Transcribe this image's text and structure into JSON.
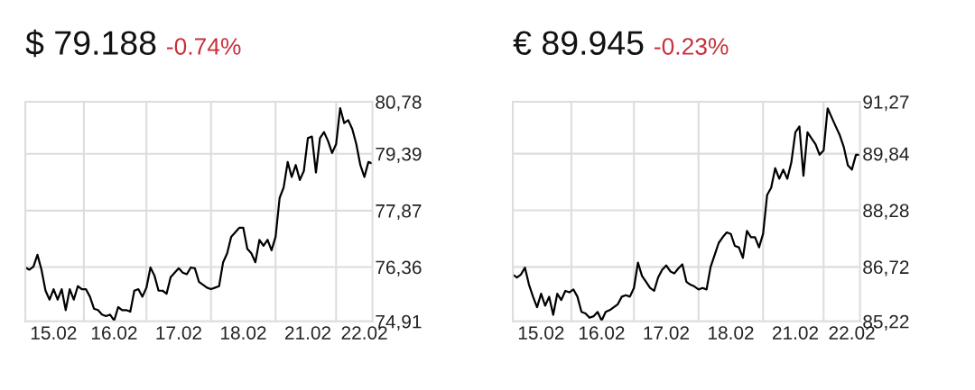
{
  "chart_data": [
    {
      "type": "line",
      "title": "$ 79.188",
      "subtitle": "-0.74%",
      "categories": [
        null,
        null,
        null,
        null,
        null,
        null,
        null,
        "15.02",
        null,
        null,
        null,
        null,
        null,
        null,
        null,
        null,
        null,
        null,
        null,
        null,
        null,
        null,
        "16.02",
        null,
        null,
        null,
        null,
        null,
        null,
        null,
        null,
        null,
        null,
        null,
        null,
        null,
        null,
        null,
        "17.02",
        null,
        null,
        null,
        null,
        null,
        null,
        null,
        null,
        null,
        null,
        null,
        null,
        null,
        null,
        null,
        "18.02",
        null,
        null,
        null,
        null,
        null,
        null,
        null,
        null,
        null,
        null,
        null,
        null,
        null,
        null,
        null,
        "21.02",
        null,
        null,
        null,
        null,
        null,
        null,
        null,
        null,
        null,
        null,
        null,
        null,
        null,
        "22.02",
        null,
        null
      ],
      "series": [
        {
          "color": "#000000",
          "values": [
            76.35,
            76.29,
            76.37,
            76.69,
            76.29,
            75.73,
            75.49,
            75.77,
            75.49,
            75.77,
            75.21,
            75.77,
            75.49,
            75.85,
            75.77,
            75.77,
            75.57,
            75.25,
            75.21,
            75.09,
            75.05,
            75.09,
            74.93,
            75.29,
            75.21,
            75.21,
            75.17,
            75.73,
            75.77,
            75.57,
            75.81,
            76.35,
            76.13,
            75.73,
            75.73,
            75.65,
            76.09,
            76.21,
            76.33,
            76.21,
            76.17,
            76.35,
            76.33,
            75.97,
            75.89,
            75.81,
            75.77,
            75.81,
            75.85,
            76.49,
            76.73,
            77.17,
            77.29,
            77.41,
            77.41,
            76.85,
            76.73,
            76.49,
            77.09,
            76.93,
            77.09,
            76.81,
            77.17,
            78.21,
            78.49,
            79.17,
            78.77,
            79.09,
            78.69,
            78.93,
            79.81,
            79.85,
            78.89,
            79.81,
            79.97,
            79.73,
            79.41,
            79.65,
            80.61,
            80.21,
            80.29,
            80.05,
            79.65,
            79.09,
            78.77,
            79.17,
            79.13
          ]
        }
      ],
      "ylim": [
        74.91,
        80.78
      ],
      "yticks": [
        {
          "value": 74.91,
          "label": "74,91"
        },
        {
          "value": 76.36,
          "label": "76,36"
        },
        {
          "value": 77.87,
          "label": "77,87"
        },
        {
          "value": 79.39,
          "label": "79,39"
        },
        {
          "value": 80.78,
          "label": "80,78"
        }
      ],
      "grid": true,
      "legend": false,
      "marker": "none",
      "line_style": "solid"
    },
    {
      "type": "line",
      "title": "€ 89.945",
      "subtitle": "-0.23%",
      "categories": [
        null,
        null,
        null,
        null,
        null,
        null,
        null,
        "15.02",
        null,
        null,
        null,
        null,
        null,
        null,
        null,
        null,
        null,
        null,
        null,
        null,
        null,
        null,
        "16.02",
        null,
        null,
        null,
        null,
        null,
        null,
        null,
        null,
        null,
        null,
        null,
        null,
        null,
        null,
        null,
        "17.02",
        null,
        null,
        null,
        null,
        null,
        null,
        null,
        null,
        null,
        null,
        null,
        null,
        null,
        null,
        null,
        "18.02",
        null,
        null,
        null,
        null,
        null,
        null,
        null,
        null,
        null,
        null,
        null,
        null,
        null,
        null,
        null,
        "21.02",
        null,
        null,
        null,
        null,
        null,
        null,
        null,
        null,
        null,
        null,
        null,
        null,
        null,
        "22.02",
        null,
        null
      ],
      "series": [
        {
          "color": "#000000",
          "values": [
            86.51,
            86.43,
            86.51,
            86.7,
            86.23,
            85.9,
            85.61,
            85.98,
            85.65,
            85.9,
            85.4,
            85.98,
            85.81,
            86.06,
            86.02,
            86.1,
            85.9,
            85.48,
            85.44,
            85.32,
            85.36,
            85.48,
            85.24,
            85.48,
            85.53,
            85.61,
            85.69,
            85.9,
            85.94,
            85.9,
            86.14,
            86.84,
            86.47,
            86.31,
            86.14,
            86.06,
            86.43,
            86.64,
            86.76,
            86.6,
            86.54,
            86.68,
            86.79,
            86.31,
            86.23,
            86.18,
            86.1,
            86.14,
            86.1,
            86.72,
            87.05,
            87.38,
            87.54,
            87.67,
            87.63,
            87.3,
            87.26,
            86.97,
            87.71,
            87.54,
            87.54,
            87.26,
            87.63,
            88.7,
            88.9,
            89.44,
            89.15,
            89.4,
            89.15,
            89.6,
            90.43,
            90.59,
            89.23,
            90.43,
            90.26,
            90.1,
            89.81,
            89.93,
            91.09,
            90.84,
            90.59,
            90.35,
            90.02,
            89.52,
            89.4,
            89.81,
            89.81
          ]
        }
      ],
      "ylim": [
        85.22,
        91.27
      ],
      "yticks": [
        {
          "value": 85.22,
          "label": "85,22"
        },
        {
          "value": 86.72,
          "label": "86,72"
        },
        {
          "value": 88.28,
          "label": "88,28"
        },
        {
          "value": 89.84,
          "label": "89,84"
        },
        {
          "value": 91.27,
          "label": "91,27"
        }
      ],
      "grid": true,
      "legend": false,
      "marker": "none",
      "line_style": "solid"
    }
  ]
}
